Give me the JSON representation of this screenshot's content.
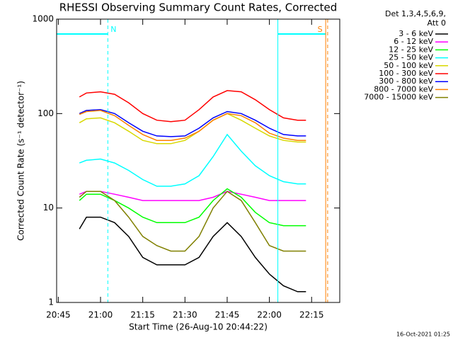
{
  "chart_data": {
    "type": "line",
    "title": "RHESSI Observing Summary Count Rates, Corrected",
    "xlabel": "Start Time (26-Aug-10 20:44:22)",
    "ylabel": "Corrected Count Rate (s⁻¹ detector⁻¹)",
    "footer": "16-Oct-2021 01:25",
    "legend_header": [
      "Det 1,3,4,5,6,9,",
      "Att 0"
    ],
    "log_y": true,
    "xlim": [
      1244.4,
      1345
    ],
    "ylim": [
      1,
      1000
    ],
    "xticks": [
      {
        "value": 1245,
        "label": "20:45"
      },
      {
        "value": 1260,
        "label": "21:00"
      },
      {
        "value": 1275,
        "label": "21:15"
      },
      {
        "value": 1290,
        "label": "21:30"
      },
      {
        "value": 1305,
        "label": "21:45"
      },
      {
        "value": 1320,
        "label": "22:00"
      },
      {
        "value": 1335,
        "label": "22:15"
      }
    ],
    "yticks": [
      1,
      10,
      100,
      1000
    ],
    "markers": [
      {
        "x": 1262.6,
        "color": "#00ffff",
        "dashed": true,
        "label": "N"
      },
      {
        "x": 1323,
        "color": "#00ffff",
        "dashed": false
      },
      {
        "x": 1340,
        "color": "#ff8000",
        "dashed": false,
        "label": "S"
      },
      {
        "x": 1340.7,
        "color": "#ff8000",
        "dashed": true
      }
    ],
    "x": [
      1252.5,
      1255,
      1260,
      1265,
      1270,
      1275,
      1280,
      1285,
      1290,
      1295,
      1300,
      1305,
      1310,
      1315,
      1320,
      1325,
      1330,
      1333
    ],
    "series": [
      {
        "name": "3 - 6 keV",
        "color": "#000000",
        "values": [
          6,
          8,
          8,
          7,
          5,
          3,
          2.5,
          2.5,
          2.5,
          3,
          5,
          7,
          5,
          3,
          2,
          1.5,
          1.3,
          1.3
        ]
      },
      {
        "name": "6 - 12 keV",
        "color": "#ff00ff",
        "values": [
          14,
          15,
          15,
          14,
          13,
          12,
          12,
          12,
          12,
          12,
          13,
          15,
          14,
          13,
          12,
          12,
          12,
          12
        ]
      },
      {
        "name": "12 - 25 keV",
        "color": "#00ff00",
        "values": [
          12,
          14,
          14,
          12,
          10,
          8,
          7,
          7,
          7,
          8,
          12,
          16,
          13,
          9,
          7,
          6.5,
          6.5,
          6.5
        ]
      },
      {
        "name": "25 - 50 keV",
        "color": "#00ffff",
        "values": [
          30,
          32,
          33,
          30,
          25,
          20,
          17,
          17,
          18,
          22,
          35,
          60,
          40,
          28,
          22,
          19,
          18,
          18
        ]
      },
      {
        "name": "50 - 100 keV",
        "color": "#d8d800",
        "values": [
          80,
          88,
          90,
          80,
          65,
          52,
          48,
          48,
          52,
          65,
          85,
          100,
          85,
          70,
          58,
          52,
          50,
          50
        ]
      },
      {
        "name": "100 - 300 keV",
        "color": "#ff0000",
        "values": [
          150,
          165,
          170,
          160,
          130,
          100,
          85,
          82,
          85,
          110,
          150,
          175,
          170,
          140,
          110,
          90,
          85,
          85
        ]
      },
      {
        "name": "300 - 800 keV",
        "color": "#0000ff",
        "values": [
          100,
          108,
          110,
          100,
          80,
          65,
          58,
          57,
          58,
          70,
          90,
          105,
          100,
          85,
          70,
          60,
          58,
          58
        ]
      },
      {
        "name": "800 - 7000 keV",
        "color": "#ff8000",
        "values": [
          98,
          105,
          108,
          95,
          75,
          60,
          52,
          52,
          55,
          65,
          85,
          100,
          95,
          80,
          62,
          55,
          52,
          52
        ]
      },
      {
        "name": "7000 - 15000 keV",
        "color": "#808000",
        "values": [
          13,
          15,
          15,
          12,
          8,
          5,
          4,
          3.5,
          3.5,
          5,
          10,
          15,
          12,
          7,
          4,
          3.5,
          3.5,
          3.5
        ]
      }
    ]
  }
}
